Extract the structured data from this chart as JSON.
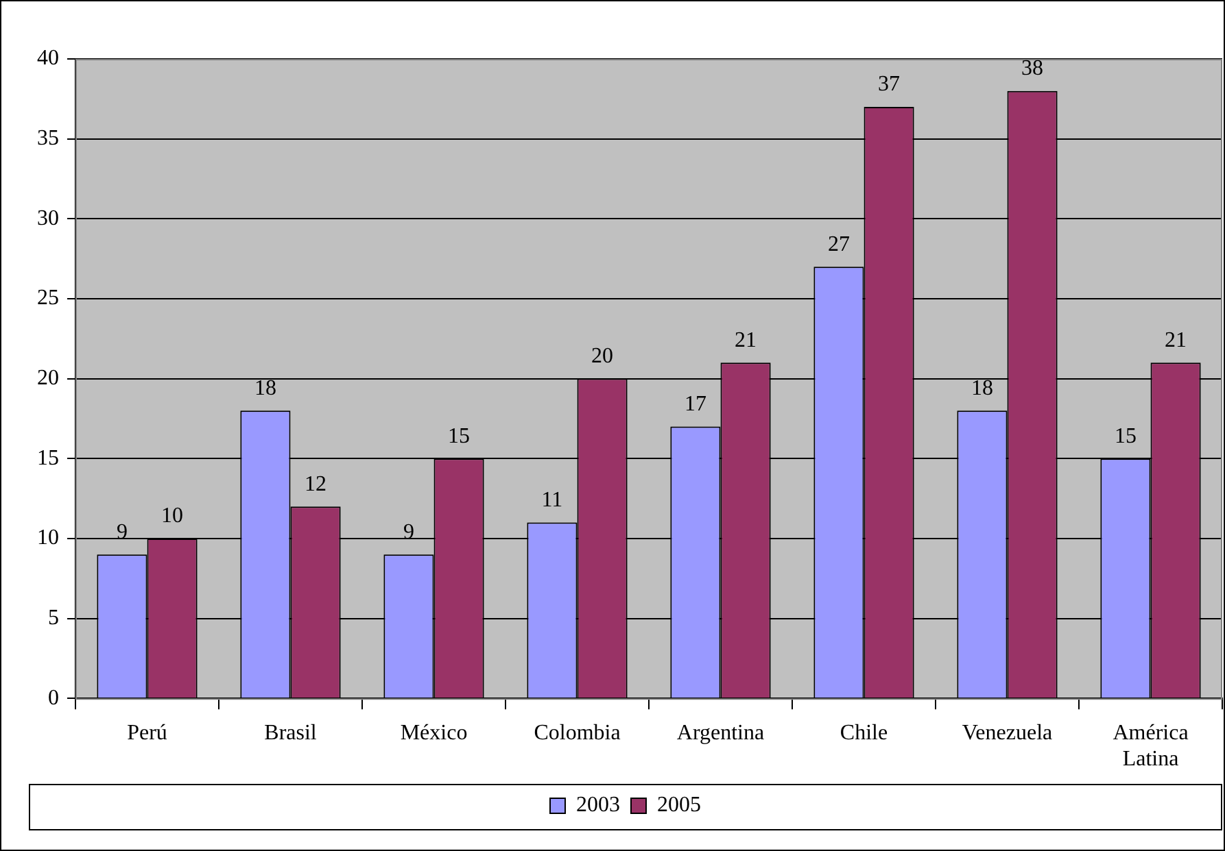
{
  "chart_data": {
    "type": "bar",
    "categories": [
      "Perú",
      "Brasil",
      "México",
      "Colombia",
      "Argentina",
      "Chile",
      "Venezuela",
      "América Latina"
    ],
    "series": [
      {
        "name": "2003",
        "color": "#9999ff",
        "values": [
          9,
          18,
          9,
          11,
          17,
          27,
          18,
          15
        ]
      },
      {
        "name": "2005",
        "color": "#993366",
        "values": [
          10,
          12,
          15,
          20,
          21,
          37,
          38,
          21
        ]
      }
    ],
    "ylim": [
      0,
      40
    ],
    "yticks": [
      0,
      5,
      10,
      15,
      20,
      25,
      30,
      35,
      40
    ],
    "grid": "y",
    "legend": "bottom",
    "data_labels": true
  }
}
